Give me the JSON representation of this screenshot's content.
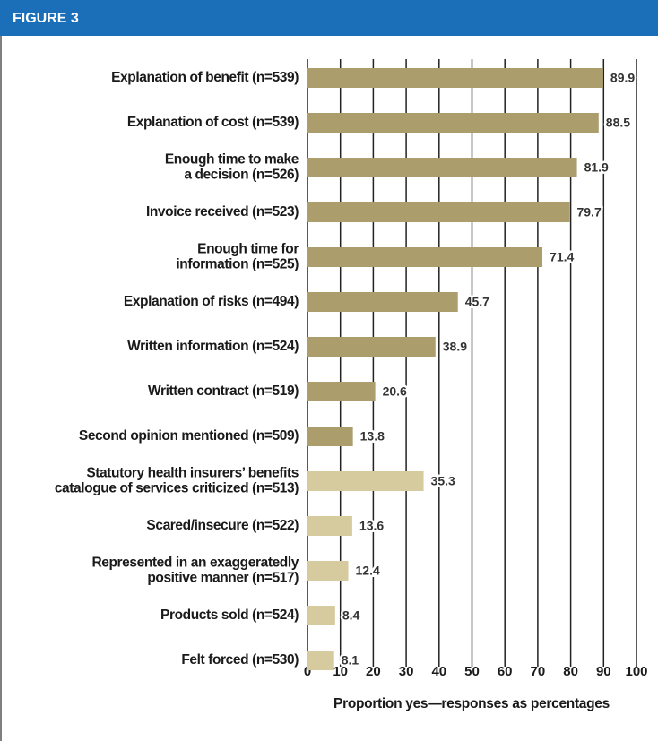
{
  "chart_data": {
    "type": "barh",
    "title": "FIGURE 3",
    "xlabel": "Proportion yes—responses as percentages",
    "categories": [
      [
        "Explanation of benefit (n=539)"
      ],
      [
        "Explanation of cost (n=539)"
      ],
      [
        "Enough time to make",
        "a decision (n=526)"
      ],
      [
        "Invoice received (n=523)"
      ],
      [
        "Enough time for",
        "information (n=525)"
      ],
      [
        "Explanation of risks (n=494)"
      ],
      [
        "Written information (n=524)"
      ],
      [
        "Written contract (n=519)"
      ],
      [
        "Second opinion mentioned (n=509)"
      ],
      [
        "Statutory health insurers’ benefits",
        "catalogue of services criticized (n=513)"
      ],
      [
        "Scared/insecure (n=522)"
      ],
      [
        "Represented in an exaggeratedly",
        "positive manner (n=517)"
      ],
      [
        "Products sold (n=524)"
      ],
      [
        "Felt forced (n=530)"
      ]
    ],
    "values": [
      89.9,
      88.5,
      81.9,
      79.7,
      71.4,
      45.7,
      38.9,
      20.6,
      13.8,
      35.3,
      13.6,
      12.4,
      8.4,
      8.1
    ],
    "colors": [
      "#ab9d6c",
      "#ab9d6c",
      "#ab9d6c",
      "#ab9d6c",
      "#ab9d6c",
      "#ab9d6c",
      "#ab9d6c",
      "#ab9d6c",
      "#ab9d6c",
      "#d6cb9f",
      "#d6cb9f",
      "#d6cb9f",
      "#d6cb9f",
      "#d6cb9f"
    ],
    "xlim": [
      0,
      100
    ],
    "xticks": [
      0,
      10,
      20,
      30,
      40,
      50,
      60,
      70,
      80,
      90,
      100
    ],
    "grid": true
  }
}
